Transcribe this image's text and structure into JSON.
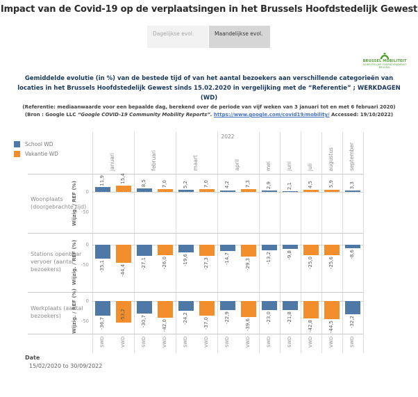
{
  "title": "Impact van de Covid-19 op de verplaatsingen in het Brussels Hoofdstedelijk Gewest",
  "tabs": [
    {
      "label": "Dagelijkse evol.",
      "active": false
    },
    {
      "label": "Maandelijkse evol.",
      "active": true
    }
  ],
  "logo": {
    "line1": "BRUSSEL MOBILITEIT",
    "line2": "GEWESTELIJKE OVERHEIDSDIENST BRUSSEL",
    "color": "#4f9e33"
  },
  "subtitle": "Gemiddelde evolutie (in %) van de bestede tijd of van het aantal bezoekers aan verschillende categorieën van locaties in het Brussels Hoofdstedelijk Gewest sinds 15.02.2020 in vergelijking met de “Referentie” ; WERKDAGEN (WD)",
  "note_reference": "(Referentie: mediaanwaarde voor een bepaalde dag, berekend over de periode van vijf weken van 3 januari tot en met 6 februari 2020)",
  "note_source": {
    "pre": "(Bron : Google LLC ",
    "italic": "“Google COVID-19 Community Mobility Reports”.",
    "link": "https://www.google.com/covid19/mobility/",
    "post": " Accessed: 19/10/2022)"
  },
  "date_section": {
    "label": "Date",
    "value": "15/02/2020 to 30/09/2022"
  },
  "chart_data": {
    "type": "bar",
    "year_label": "2022",
    "ylabel": "Wijzig. / REF (%)",
    "yticks": [
      0,
      -50
    ],
    "grid": true,
    "legend_position": "top-left",
    "legend": [
      {
        "label": "School WD",
        "series": "SWD",
        "color": "#4e79a7"
      },
      {
        "label": "Vakantie WD",
        "series": "VWD",
        "color": "#f28e2b"
      }
    ],
    "series_colors": {
      "SWD": "#4e79a7",
      "VWD": "#f28e2b"
    },
    "months": [
      "januari",
      "februari",
      "maart",
      "april",
      "mei",
      "juni",
      "juli",
      "augustus",
      "september"
    ],
    "bar_types": [
      [
        "SWD",
        "VWD"
      ],
      [
        "SWD",
        "VWD"
      ],
      [
        "SWD",
        "VWD"
      ],
      [
        "SWD",
        "VWD"
      ],
      [
        "SWD"
      ],
      [
        "SWD"
      ],
      [
        "VWD"
      ],
      [
        "VWD"
      ],
      [
        "SWD"
      ]
    ],
    "rows": [
      {
        "label": "Woonplaats (doorgebrachte tijd)",
        "values": [
          [
            11.9,
            15.4
          ],
          [
            8.5,
            7.0
          ],
          [
            5.2,
            7.0
          ],
          [
            4.2,
            7.3
          ],
          [
            2.9
          ],
          [
            2.1
          ],
          [
            4.5
          ],
          [
            5.9
          ],
          [
            3.3
          ]
        ]
      },
      {
        "label": "Stations openbaar vervoer (aantal bezoekers)",
        "values": [
          [
            -35.1,
            -44.4
          ],
          [
            -27.1,
            -26.0
          ],
          [
            -19.6,
            -27.3
          ],
          [
            -14.7,
            -29.3
          ],
          [
            -13.2
          ],
          [
            -9.8
          ],
          [
            -25.0
          ],
          [
            -25.6
          ],
          [
            -8.6
          ]
        ]
      },
      {
        "label": "Werkplaats (aantal bezoekers)",
        "values": [
          [
            -36.7,
            -53.2
          ],
          [
            -30.7,
            -42.0
          ],
          [
            -24.2,
            -37.0
          ],
          [
            -22.9,
            -39.6
          ],
          [
            -23.0
          ],
          [
            -21.8
          ],
          [
            -42.8
          ],
          [
            -44.5
          ],
          [
            -32.2
          ]
        ]
      }
    ]
  }
}
